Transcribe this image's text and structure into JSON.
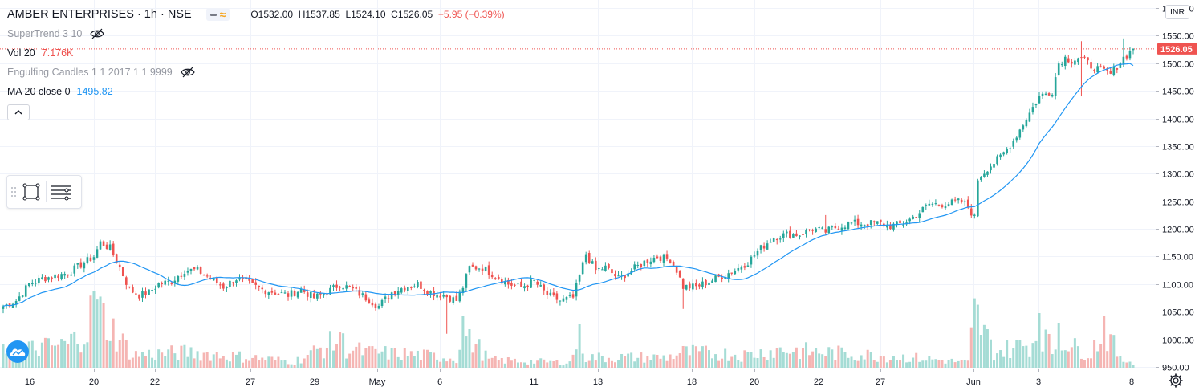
{
  "header": {
    "title": "AMBER ENTERPRISES · 1h · NSE",
    "ohlc": {
      "open": "O1532.00",
      "high": "H1537.85",
      "low": "L1524.10",
      "close": "C1526.05",
      "change": "−5.95 (−0.39%)"
    }
  },
  "indicators": [
    {
      "name": "SuperTrend 3 10",
      "value": "",
      "value_color": "",
      "hidden": true
    },
    {
      "name": "Vol 20",
      "value": "7.176K",
      "value_color": "#ef5350",
      "hidden": false
    },
    {
      "name": "Engulfing Candles 1 1 2017 1 1 9999",
      "value": "",
      "value_color": "",
      "hidden": true
    },
    {
      "name": "MA 20 close 0",
      "value": "1495.82",
      "value_color": "#2196f3",
      "hidden": false
    }
  ],
  "icons": {
    "eye_hidden": "eye-crossed-icon",
    "collapse": "chevron-up-icon",
    "rectangle_tool": "rectangle-icon",
    "lines_tool": "horizontal-lines-icon",
    "logo": "tradingview-cloud-icon",
    "settings": "gear-icon"
  },
  "colors": {
    "up": "#26a69a",
    "down": "#ef5350",
    "ma": "#2196f3",
    "vol_up": "#a5dcd5",
    "vol_down": "#f5b5b3",
    "last_price_bg": "#ef5350"
  },
  "price_axis": {
    "currency": "INR",
    "last_price_label": "1526.05",
    "ticks": [
      1600.0,
      1550.0,
      1500.0,
      1450.0,
      1400.0,
      1350.0,
      1300.0,
      1250.0,
      1200.0,
      1150.0,
      1100.0,
      1050.0,
      1000.0,
      950.0
    ],
    "tick_labels": [
      "1600.00",
      "1550.00",
      "1500.00",
      "1450.00",
      "1400.00",
      "1350.00",
      "1300.00",
      "1250.00",
      "1200.00",
      "1150.00",
      "1100.00",
      "1050.00",
      "1000.00",
      "950.00"
    ]
  },
  "time_axis": {
    "labels": [
      "16",
      "20",
      "22",
      "27",
      "29",
      "May",
      "6",
      "11",
      "13",
      "18",
      "20",
      "22",
      "27",
      "Jun",
      "3",
      "8"
    ]
  },
  "chart_data": {
    "type": "candlestick",
    "series_names": [
      "AMBER ENTERPRISES",
      "Vol 20",
      "MA 20 close 0"
    ],
    "ylim": [
      950,
      1600
    ],
    "x_labels": [
      "16",
      "20",
      "22",
      "27",
      "29",
      "May",
      "6",
      "11",
      "13",
      "18",
      "20",
      "22",
      "27",
      "Jun",
      "3",
      "8"
    ],
    "last_close": 1526.05,
    "ma_last": 1495.82,
    "close_keyframes": [
      [
        0,
        1060
      ],
      [
        4,
        1070
      ],
      [
        8,
        1100
      ],
      [
        12,
        1110
      ],
      [
        16,
        1115
      ],
      [
        20,
        1120
      ],
      [
        24,
        1135
      ],
      [
        28,
        1150
      ],
      [
        30,
        1175
      ],
      [
        33,
        1165
      ],
      [
        36,
        1130
      ],
      [
        39,
        1090
      ],
      [
        42,
        1080
      ],
      [
        45,
        1085
      ],
      [
        48,
        1100
      ],
      [
        52,
        1105
      ],
      [
        56,
        1125
      ],
      [
        60,
        1125
      ],
      [
        64,
        1110
      ],
      [
        68,
        1095
      ],
      [
        72,
        1110
      ],
      [
        76,
        1100
      ],
      [
        80,
        1090
      ],
      [
        84,
        1085
      ],
      [
        88,
        1080
      ],
      [
        92,
        1090
      ],
      [
        96,
        1075
      ],
      [
        100,
        1085
      ],
      [
        104,
        1100
      ],
      [
        108,
        1090
      ],
      [
        112,
        1075
      ],
      [
        116,
        1060
      ],
      [
        120,
        1085
      ],
      [
        124,
        1095
      ],
      [
        128,
        1100
      ],
      [
        132,
        1085
      ],
      [
        136,
        1080
      ],
      [
        140,
        1070
      ],
      [
        142,
        1095
      ],
      [
        144,
        1130
      ],
      [
        148,
        1130
      ],
      [
        152,
        1115
      ],
      [
        156,
        1100
      ],
      [
        160,
        1095
      ],
      [
        164,
        1105
      ],
      [
        168,
        1080
      ],
      [
        172,
        1070
      ],
      [
        176,
        1075
      ],
      [
        178,
        1115
      ],
      [
        180,
        1155
      ],
      [
        183,
        1125
      ],
      [
        186,
        1130
      ],
      [
        190,
        1110
      ],
      [
        194,
        1125
      ],
      [
        198,
        1140
      ],
      [
        202,
        1150
      ],
      [
        206,
        1145
      ],
      [
        208,
        1125
      ],
      [
        210,
        1095
      ],
      [
        214,
        1095
      ],
      [
        218,
        1105
      ],
      [
        222,
        1115
      ],
      [
        226,
        1125
      ],
      [
        230,
        1140
      ],
      [
        234,
        1165
      ],
      [
        238,
        1185
      ],
      [
        242,
        1190
      ],
      [
        246,
        1190
      ],
      [
        250,
        1200
      ],
      [
        254,
        1195
      ],
      [
        258,
        1205
      ],
      [
        262,
        1210
      ],
      [
        266,
        1210
      ],
      [
        270,
        1210
      ],
      [
        274,
        1205
      ],
      [
        278,
        1210
      ],
      [
        282,
        1225
      ],
      [
        286,
        1245
      ],
      [
        290,
        1245
      ],
      [
        294,
        1248
      ],
      [
        296,
        1250
      ],
      [
        298,
        1240
      ],
      [
        300,
        1220
      ],
      [
        301,
        1290
      ],
      [
        304,
        1310
      ],
      [
        308,
        1330
      ],
      [
        312,
        1360
      ],
      [
        316,
        1400
      ],
      [
        320,
        1440
      ],
      [
        324,
        1450
      ],
      [
        326,
        1500
      ],
      [
        328,
        1510
      ],
      [
        330,
        1505
      ],
      [
        332,
        1510
      ],
      [
        334,
        1505
      ],
      [
        336,
        1495
      ],
      [
        338,
        1490
      ],
      [
        340,
        1485
      ],
      [
        342,
        1480
      ],
      [
        344,
        1495
      ],
      [
        346,
        1510
      ],
      [
        348,
        1520
      ],
      [
        349,
        1526
      ]
    ],
    "volume_keyframes": [
      [
        0,
        30
      ],
      [
        20,
        45
      ],
      [
        26,
        78
      ],
      [
        28,
        120
      ],
      [
        40,
        25
      ],
      [
        58,
        30
      ],
      [
        90,
        12
      ],
      [
        104,
        55
      ],
      [
        106,
        38
      ],
      [
        112,
        30
      ],
      [
        128,
        25
      ],
      [
        140,
        18
      ],
      [
        142,
        80
      ],
      [
        144,
        60
      ],
      [
        150,
        15
      ],
      [
        175,
        10
      ],
      [
        178,
        68
      ],
      [
        180,
        20
      ],
      [
        205,
        20
      ],
      [
        210,
        30
      ],
      [
        230,
        25
      ],
      [
        240,
        35
      ],
      [
        280,
        20
      ],
      [
        298,
        10
      ],
      [
        300,
        108
      ],
      [
        302,
        80
      ],
      [
        306,
        30
      ],
      [
        318,
        48
      ],
      [
        320,
        85
      ],
      [
        324,
        30
      ],
      [
        326,
        70
      ],
      [
        330,
        40
      ],
      [
        336,
        30
      ],
      [
        340,
        80
      ],
      [
        345,
        15
      ],
      [
        349,
        12
      ]
    ]
  }
}
